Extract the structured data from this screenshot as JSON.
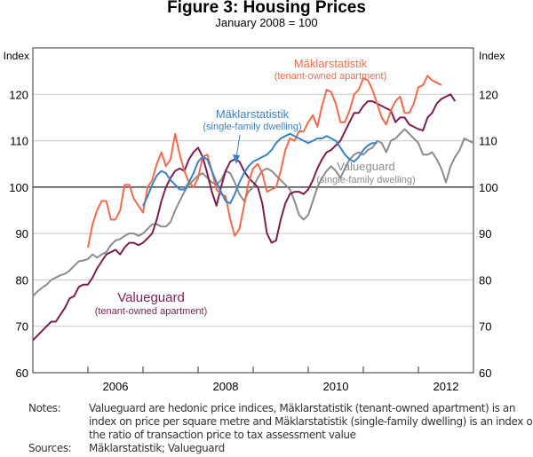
{
  "chart_data": {
    "type": "line",
    "title": "Figure 3: Housing Prices",
    "subtitle": "January 2008 = 100",
    "ylabel_left": "Index",
    "ylabel_right": "Index",
    "ylim": [
      60,
      130
    ],
    "yticks": [
      60,
      70,
      80,
      90,
      100,
      110,
      120
    ],
    "xlim": [
      2005,
      2013
    ],
    "xticks": [
      2006,
      2007,
      2008,
      2009,
      2010,
      2011,
      2012
    ],
    "xtick_labels": [
      "2006",
      "2008",
      "2010",
      "2012"
    ],
    "reference_line": 100,
    "grid": true,
    "series": [
      {
        "name": "Valueguard (single-family dwelling)",
        "label": "Valueguard",
        "sublabel": "(single-family dwelling)",
        "color": "#8c8c8c",
        "start": 2005.0,
        "step_months": 1,
        "values": [
          76.5,
          77.5,
          78.3,
          79,
          80,
          80.5,
          81,
          81.3,
          82,
          83,
          84,
          84.2,
          84.5,
          85.5,
          84.8,
          85.5,
          86,
          87.5,
          88.5,
          88.8,
          89.5,
          90,
          90,
          89.5,
          90,
          91,
          92,
          92,
          91.5,
          91.5,
          92.5,
          95,
          97,
          99,
          100.5,
          101.5,
          102.5,
          103,
          102,
          101,
          100.5,
          101.5,
          103.5,
          103,
          101,
          98.5,
          97,
          99,
          100,
          102,
          103.5,
          104,
          103.5,
          102.5,
          101.5,
          100.5,
          99.5,
          97,
          94,
          93,
          94,
          97,
          100,
          102,
          103.5,
          104.5,
          103.5,
          102,
          104,
          106,
          107,
          107.5,
          107,
          108,
          108.5,
          110,
          109.5,
          107.5,
          110,
          110.5,
          111.5,
          112.5,
          111.5,
          110.5,
          109.5,
          107,
          107,
          107.5,
          106,
          104,
          101,
          104.5,
          106.5,
          108,
          110.5,
          110,
          109.5
        ]
      },
      {
        "name": "Valueguard (tenant-owned apartment)",
        "label": "Valueguard",
        "sublabel": "(tenant-owned apartment)",
        "color": "#7b1f4f",
        "start": 2005.0,
        "step_months": 1,
        "values": [
          67,
          68,
          69,
          70,
          71,
          71,
          72.5,
          74,
          76,
          76.5,
          78.5,
          79,
          79,
          80.5,
          82.5,
          84,
          85.5,
          86,
          86.5,
          85.5,
          87,
          88,
          88,
          87.5,
          88,
          89,
          90,
          93,
          97,
          100,
          102,
          103.5,
          104,
          103.5,
          106,
          107.5,
          108.5,
          106.5,
          103,
          99,
          96,
          100,
          103.5,
          105.5,
          106,
          105.5,
          103.5,
          102,
          101,
          100,
          96.5,
          90,
          88,
          88.5,
          93,
          96.5,
          98.5,
          99,
          99,
          98.5,
          99.5,
          101.5,
          104,
          106,
          107.5,
          108,
          109,
          110,
          112,
          114,
          116,
          116,
          117.5,
          118.5,
          118.5,
          118,
          117.5,
          117,
          116.5,
          114,
          115,
          115,
          113.5,
          113,
          112.5,
          112.2,
          115,
          116,
          118,
          119,
          119.5,
          120,
          118.5
        ]
      },
      {
        "name": "Mäklarstatistik (tenant-owned apartment)",
        "label": "Mäklarstatistik",
        "sublabel": "(tenant-owned apartment)",
        "color": "#f26a4b",
        "start": 2006.0,
        "step_months": 1,
        "values": [
          87,
          92,
          95,
          97,
          97,
          93,
          93,
          95,
          100.5,
          100.5,
          97.5,
          96,
          94.5,
          100,
          101.5,
          105,
          107.5,
          104.5,
          106,
          111.5,
          107,
          103.5,
          101,
          100,
          102,
          106.5,
          107,
          103.5,
          99.5,
          98.5,
          98,
          93,
          89.5,
          91,
          96,
          101,
          104,
          105,
          103,
          99,
          99.5,
          100,
          103.5,
          108,
          110.5,
          110,
          112,
          112,
          114,
          115.5,
          113,
          117.5,
          121,
          120.5,
          118,
          114,
          114,
          116.5,
          120,
          121,
          123.5,
          123,
          121,
          118,
          115,
          113.5,
          116.5,
          118.5,
          119.5,
          116,
          116,
          118,
          121.5,
          122,
          124,
          123,
          122.5,
          122
        ]
      },
      {
        "name": "Mäklarstatistik (single-family dwelling)",
        "label": "Mäklarstatistik",
        "sublabel": "(single-family dwelling)",
        "color": "#3a82c4",
        "start": 2007.0,
        "step_months": 1,
        "values": [
          96,
          98,
          100.5,
          102.5,
          103.5,
          103,
          101.5,
          100.5,
          99.5,
          99.5,
          101,
          103,
          105.5,
          106.5,
          106,
          103.5,
          101,
          99,
          97,
          96.5,
          98.5,
          101,
          103,
          104.5,
          105.5,
          106,
          106.5,
          107,
          108,
          109.5,
          110.5,
          111,
          111.5,
          111,
          110.5,
          110,
          109.5,
          110,
          110.5,
          110.5,
          111,
          110.5,
          110,
          108.5,
          107,
          106,
          105.5,
          106.5,
          108,
          109,
          109.5,
          109.5
        ]
      }
    ],
    "annotation_arrow": "Mäklarstatistik (single-family dwelling)"
  },
  "notes": {
    "notes_label": "Notes:",
    "notes_text": "Valueguard are hedonic price indices, Mäklarstatistik (tenant-owned apartment) is an index on price per square metre and Mäklarstatistik (single-family dwelling) is an index on the ratio of transaction price to tax assessment value",
    "sources_label": "Sources:",
    "sources_text": "Mäklarstatistik; Valueguard"
  }
}
